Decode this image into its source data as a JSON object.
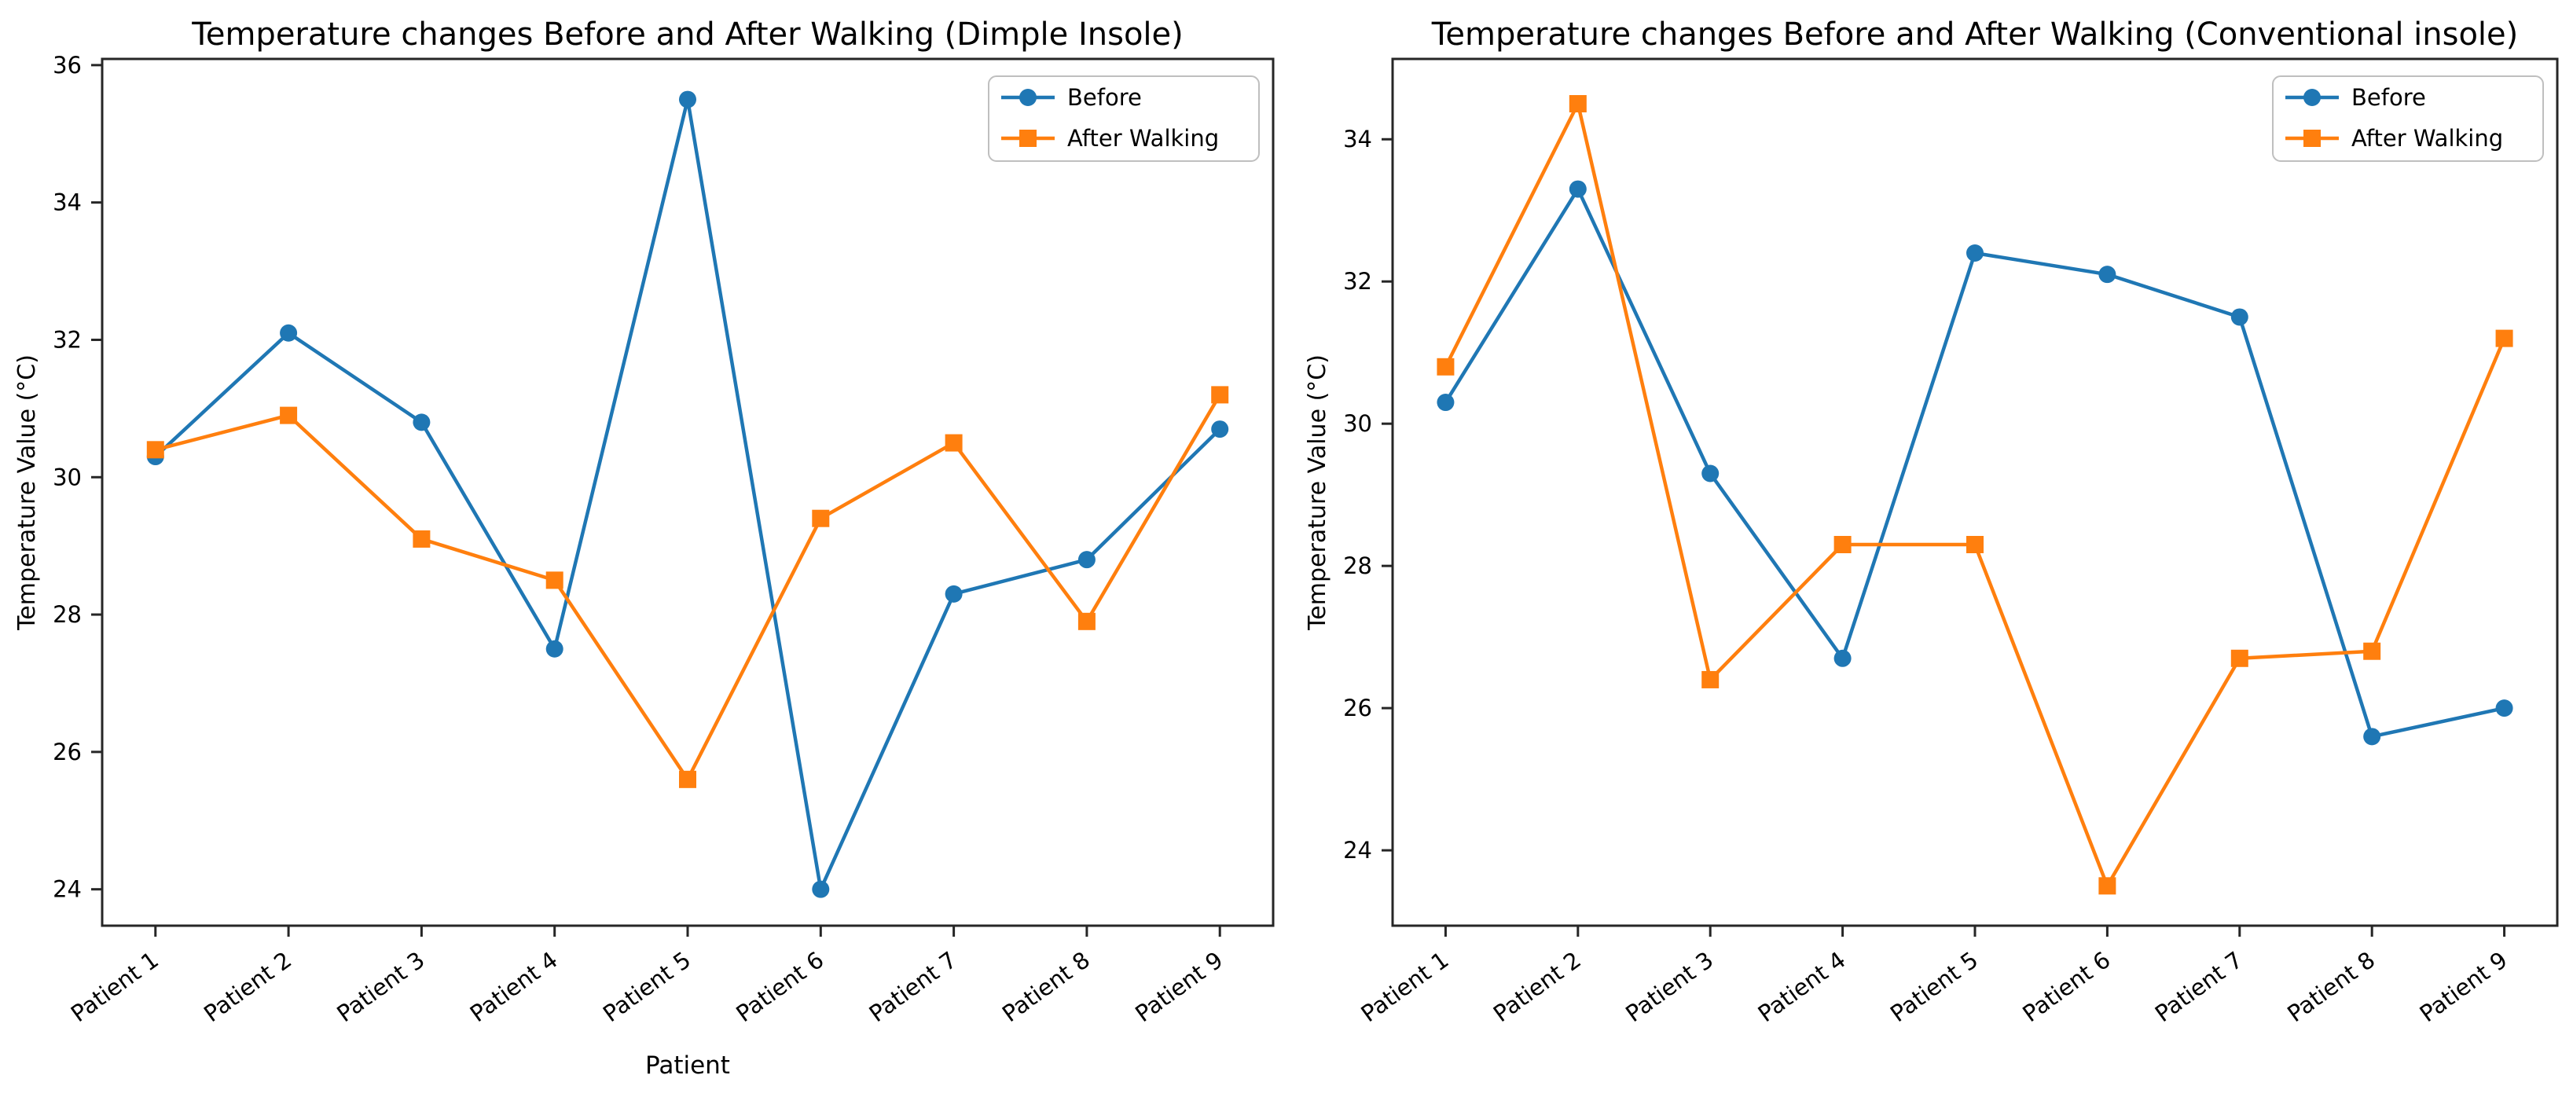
{
  "figure": {
    "background": "#ffffff",
    "axis_color": "#262626",
    "legend_border_color": "#bfbfbf",
    "legend_background": "#ffffff"
  },
  "chart_data": [
    {
      "type": "line",
      "title": "Temperature changes Before and After Walking (Dimple Insole)",
      "xlabel": "Patient",
      "ylabel": "Temperature Value (°C)",
      "categories": [
        "Patient 1",
        "Patient 2",
        "Patient 3",
        "Patient 4",
        "Patient 5",
        "Patient 6",
        "Patient 7",
        "Patient 8",
        "Patient 9"
      ],
      "yticks": [
        24,
        26,
        28,
        30,
        32,
        34,
        36
      ],
      "ylim": [
        23.47,
        36.09
      ],
      "grid": false,
      "legend_position": "upper right",
      "legend_labels": [
        "Before",
        "After Walking"
      ],
      "series": [
        {
          "name": "Before",
          "marker": "circle",
          "color": "#1f77b4",
          "values": [
            30.3,
            32.1,
            30.8,
            27.5,
            35.5,
            24.0,
            28.3,
            28.8,
            30.7
          ]
        },
        {
          "name": "After Walking",
          "marker": "square",
          "color": "#ff7f0e",
          "values": [
            30.4,
            30.9,
            29.1,
            28.5,
            25.6,
            29.4,
            30.5,
            27.9,
            31.2
          ]
        }
      ]
    },
    {
      "type": "line",
      "title": "Temperature changes Before and After Walking (Conventional insole)",
      "xlabel": "",
      "ylabel": "Temperature Value (°C)",
      "categories": [
        "Patient 1",
        "Patient 2",
        "Patient 3",
        "Patient 4",
        "Patient 5",
        "Patient 6",
        "Patient 7",
        "Patient 8",
        "Patient 9"
      ],
      "yticks": [
        24,
        26,
        28,
        30,
        32,
        34
      ],
      "ylim": [
        22.94,
        35.13
      ],
      "grid": false,
      "legend_position": "upper right",
      "legend_labels": [
        "Before",
        "After Walking"
      ],
      "series": [
        {
          "name": "Before",
          "marker": "circle",
          "color": "#1f77b4",
          "values": [
            30.3,
            33.3,
            29.3,
            26.7,
            32.4,
            32.1,
            31.5,
            25.6,
            26.0
          ]
        },
        {
          "name": "After Walking",
          "marker": "square",
          "color": "#ff7f0e",
          "values": [
            30.8,
            34.5,
            26.4,
            28.3,
            28.3,
            23.5,
            26.7,
            26.8,
            31.2
          ]
        }
      ]
    }
  ]
}
